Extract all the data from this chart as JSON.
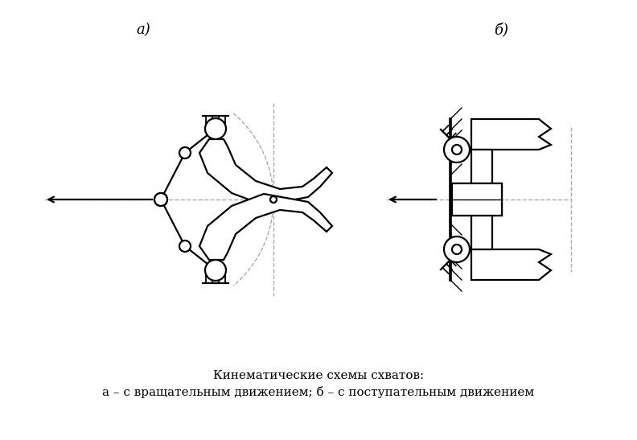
{
  "title_a": "а)",
  "title_b": "б)",
  "caption_line1": "Кинематические схемы схватов:",
  "caption_line2": "а – с вращательным движением; б – с поступательным движением",
  "bg_color": "#ffffff",
  "line_color": "#000000",
  "dash_color": "#aaaaaa",
  "lw": 1.6,
  "lw_thin": 1.0
}
